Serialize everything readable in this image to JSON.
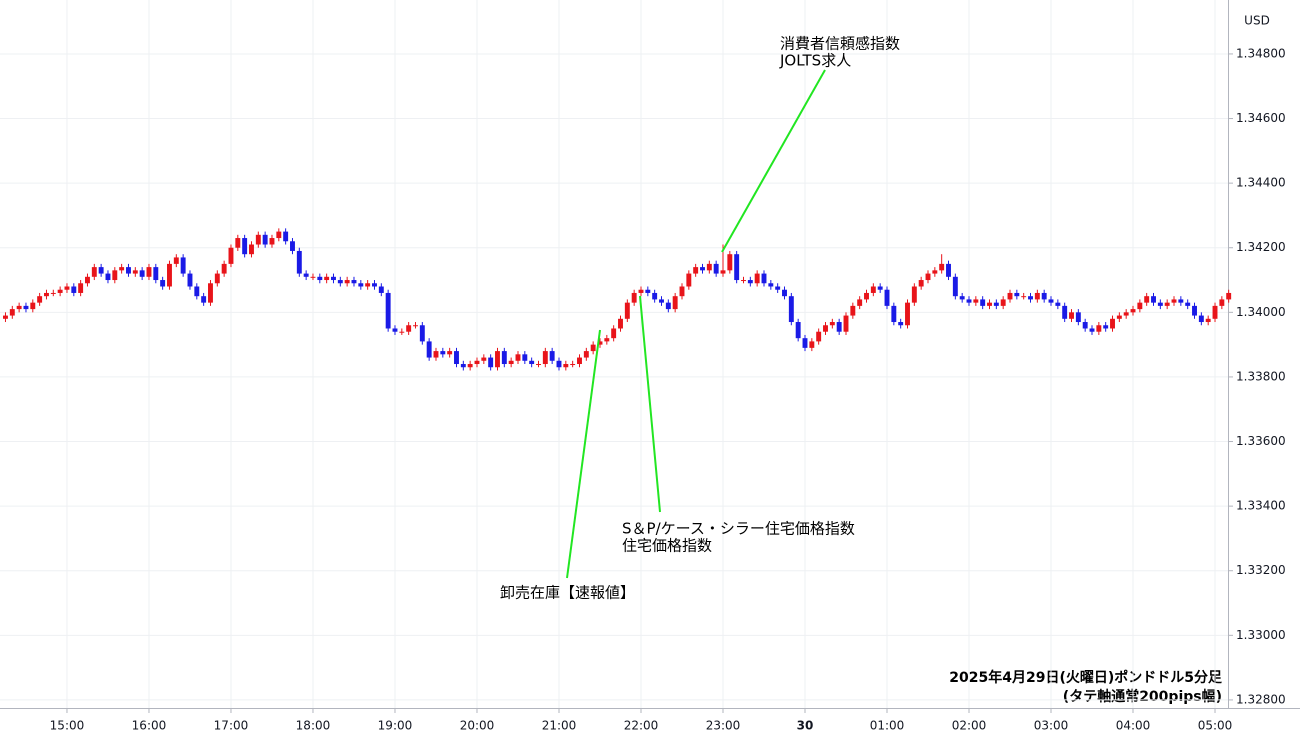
{
  "chart_data": {
    "type": "candlestick",
    "currency": "USD",
    "caption": [
      "2025年4月29日(火曜日)ポンドドル5分足",
      "(タテ軸通常200pips幅)"
    ],
    "annotations": [
      {
        "lines": [
          "消費者信頼感指数",
          "JOLTS求人"
        ]
      },
      {
        "lines": [
          "S＆P/ケース・シラー住宅価格指数",
          "住宅価格指数"
        ]
      },
      {
        "lines": [
          "卸売在庫【速報値】"
        ]
      }
    ],
    "up_color": "#e8141a",
    "down_color": "#1a1ae6",
    "annotation_color": "#22e622",
    "grid": true,
    "ylim": [
      1.32775,
      1.34967
    ],
    "yticks": [
      {
        "value": 1.348,
        "label": "1.34800"
      },
      {
        "value": 1.346,
        "label": "1.34600"
      },
      {
        "value": 1.344,
        "label": "1.34400"
      },
      {
        "value": 1.342,
        "label": "1.34200"
      },
      {
        "value": 1.34,
        "label": "1.34000"
      },
      {
        "value": 1.338,
        "label": "1.33800"
      },
      {
        "value": 1.336,
        "label": "1.33600"
      },
      {
        "value": 1.334,
        "label": "1.33400"
      },
      {
        "value": 1.332,
        "label": "1.33200"
      },
      {
        "value": 1.33,
        "label": "1.33000"
      },
      {
        "value": 1.328,
        "label": "1.32800"
      }
    ],
    "xlim": [
      -0.8,
      178.9
    ],
    "xticks": [
      {
        "value": 9,
        "label": "15:00"
      },
      {
        "value": 21,
        "label": "16:00"
      },
      {
        "value": 33,
        "label": "17:00"
      },
      {
        "value": 45,
        "label": "18:00"
      },
      {
        "value": 57,
        "label": "19:00"
      },
      {
        "value": 69,
        "label": "20:00"
      },
      {
        "value": 81,
        "label": "21:00"
      },
      {
        "value": 93,
        "label": "22:00"
      },
      {
        "value": 105,
        "label": "23:00"
      },
      {
        "value": 117,
        "label": "30"
      },
      {
        "value": 129,
        "label": "01:00"
      },
      {
        "value": 141,
        "label": "02:00"
      },
      {
        "value": 153,
        "label": "03:00"
      },
      {
        "value": 165,
        "label": "04:00"
      },
      {
        "value": 177,
        "label": "05:00"
      }
    ],
    "open": [
      1.3398,
      1.3399,
      1.3401,
      1.3402,
      1.3401,
      1.3403,
      1.3405,
      1.3406,
      1.3406,
      1.3407,
      1.3408,
      1.3406,
      1.3409,
      1.3411,
      1.3414,
      1.3412,
      1.341,
      1.3413,
      1.3414,
      1.3412,
      1.3413,
      1.3411,
      1.3414,
      1.341,
      1.3408,
      1.3415,
      1.3417,
      1.3412,
      1.3408,
      1.3405,
      1.3403,
      1.3409,
      1.3412,
      1.3415,
      1.342,
      1.3423,
      1.3418,
      1.3421,
      1.3424,
      1.3421,
      1.3423,
      1.3425,
      1.3422,
      1.3419,
      1.3412,
      1.3411,
      1.3411,
      1.341,
      1.3411,
      1.341,
      1.3409,
      1.341,
      1.3409,
      1.3408,
      1.3409,
      1.3408,
      1.3406,
      1.3395,
      1.3394,
      1.3394,
      1.3396,
      1.3396,
      1.3391,
      1.3386,
      1.3388,
      1.3387,
      1.3388,
      1.3384,
      1.3383,
      1.3384,
      1.3385,
      1.3386,
      1.3383,
      1.3388,
      1.3384,
      1.3385,
      1.3387,
      1.3385,
      1.3384,
      1.3384,
      1.3388,
      1.3385,
      1.3383,
      1.3384,
      1.3384,
      1.3386,
      1.3388,
      1.339,
      1.3391,
      1.3392,
      1.3395,
      1.3398,
      1.3403,
      1.3406,
      1.3407,
      1.3406,
      1.3404,
      1.3403,
      1.3401,
      1.3405,
      1.3408,
      1.3412,
      1.3414,
      1.3413,
      1.3415,
      1.3412,
      1.3413,
      1.3418,
      1.341,
      1.341,
      1.3409,
      1.3412,
      1.3409,
      1.3408,
      1.3407,
      1.3405,
      1.3397,
      1.3392,
      1.3389,
      1.3391,
      1.3394,
      1.3396,
      1.3397,
      1.3394,
      1.3399,
      1.3402,
      1.3404,
      1.3406,
      1.3408,
      1.3407,
      1.3402,
      1.3397,
      1.3396,
      1.3403,
      1.3408,
      1.341,
      1.3412,
      1.3413,
      1.3415,
      1.3411,
      1.3405,
      1.3404,
      1.3403,
      1.3404,
      1.3402,
      1.3403,
      1.3402,
      1.3404,
      1.3406,
      1.3405,
      1.3405,
      1.3404,
      1.3406,
      1.3404,
      1.3403,
      1.3402,
      1.3398,
      1.34,
      1.3397,
      1.3395,
      1.3394,
      1.3396,
      1.3395,
      1.3398,
      1.3399,
      1.34,
      1.3401,
      1.3403,
      1.3405,
      1.3403,
      1.3402,
      1.3403,
      1.3404,
      1.3403,
      1.3402,
      1.3399,
      1.3397,
      1.3398,
      1.3402,
      1.3404
    ],
    "high": [
      1.34,
      1.3402,
      1.3403,
      1.3403,
      1.3404,
      1.3406,
      1.3407,
      1.3407,
      1.3408,
      1.3409,
      1.3409,
      1.341,
      1.3412,
      1.3415,
      1.3415,
      1.3413,
      1.3414,
      1.3415,
      1.3415,
      1.3414,
      1.3414,
      1.3415,
      1.3415,
      1.3411,
      1.3416,
      1.3418,
      1.3418,
      1.3413,
      1.3409,
      1.3406,
      1.341,
      1.3413,
      1.3416,
      1.3421,
      1.3424,
      1.3424,
      1.3422,
      1.3425,
      1.3425,
      1.3424,
      1.3426,
      1.3426,
      1.3423,
      1.342,
      1.3413,
      1.3412,
      1.3412,
      1.3412,
      1.3412,
      1.3411,
      1.3411,
      1.3411,
      1.341,
      1.341,
      1.341,
      1.3409,
      1.3407,
      1.3396,
      1.3395,
      1.3397,
      1.3397,
      1.3397,
      1.3392,
      1.3389,
      1.3389,
      1.3389,
      1.3389,
      1.3385,
      1.3385,
      1.3386,
      1.3387,
      1.3387,
      1.3389,
      1.3389,
      1.3386,
      1.3388,
      1.3388,
      1.3386,
      1.3385,
      1.3389,
      1.3389,
      1.3386,
      1.3385,
      1.3385,
      1.3387,
      1.3389,
      1.3391,
      1.3392,
      1.3393,
      1.3396,
      1.3399,
      1.3404,
      1.3407,
      1.3408,
      1.3408,
      1.3407,
      1.3405,
      1.3404,
      1.3406,
      1.3409,
      1.3413,
      1.3415,
      1.3415,
      1.3416,
      1.3416,
      1.3421,
      1.3419,
      1.3419,
      1.3411,
      1.3411,
      1.3413,
      1.3413,
      1.341,
      1.3409,
      1.3408,
      1.3406,
      1.3398,
      1.3393,
      1.3392,
      1.3395,
      1.3397,
      1.3398,
      1.3398,
      1.34,
      1.3403,
      1.3405,
      1.3407,
      1.3409,
      1.3409,
      1.3408,
      1.3403,
      1.3398,
      1.3404,
      1.3409,
      1.3411,
      1.3413,
      1.3414,
      1.3418,
      1.3416,
      1.3412,
      1.3406,
      1.3405,
      1.3405,
      1.3405,
      1.3404,
      1.3404,
      1.3405,
      1.3407,
      1.3407,
      1.3406,
      1.3406,
      1.3407,
      1.3407,
      1.3405,
      1.3404,
      1.3403,
      1.3401,
      1.3401,
      1.3398,
      1.3396,
      1.3397,
      1.3397,
      1.3399,
      1.34,
      1.3401,
      1.3402,
      1.3404,
      1.3406,
      1.3406,
      1.3404,
      1.3404,
      1.3405,
      1.3405,
      1.3404,
      1.3403,
      1.34,
      1.3399,
      1.3403,
      1.3405,
      1.3407
    ],
    "low": [
      1.3397,
      1.3398,
      1.34,
      1.34,
      1.34,
      1.3402,
      1.3404,
      1.3405,
      1.3405,
      1.3406,
      1.3405,
      1.3405,
      1.3408,
      1.341,
      1.3411,
      1.3409,
      1.3409,
      1.3412,
      1.3411,
      1.3411,
      1.341,
      1.341,
      1.3409,
      1.3407,
      1.3407,
      1.3414,
      1.3411,
      1.3407,
      1.3404,
      1.3402,
      1.3402,
      1.3408,
      1.3411,
      1.3414,
      1.3419,
      1.3417,
      1.3417,
      1.342,
      1.342,
      1.342,
      1.3422,
      1.3421,
      1.3418,
      1.3411,
      1.341,
      1.341,
      1.3409,
      1.3409,
      1.3409,
      1.3408,
      1.3408,
      1.3408,
      1.3407,
      1.3407,
      1.3407,
      1.3405,
      1.3394,
      1.3393,
      1.3393,
      1.3393,
      1.3395,
      1.339,
      1.3385,
      1.3385,
      1.3386,
      1.3386,
      1.3383,
      1.3382,
      1.3382,
      1.3383,
      1.3384,
      1.3382,
      1.3382,
      1.3383,
      1.3383,
      1.3384,
      1.3384,
      1.3383,
      1.3383,
      1.3383,
      1.3384,
      1.3382,
      1.3382,
      1.3383,
      1.3383,
      1.3385,
      1.3387,
      1.3389,
      1.339,
      1.3391,
      1.3394,
      1.3397,
      1.3402,
      1.3405,
      1.3405,
      1.3403,
      1.3402,
      1.34,
      1.34,
      1.3404,
      1.3407,
      1.3411,
      1.3412,
      1.3412,
      1.3411,
      1.3411,
      1.3412,
      1.3409,
      1.3409,
      1.3408,
      1.3408,
      1.3408,
      1.3407,
      1.3406,
      1.3404,
      1.3396,
      1.3391,
      1.3388,
      1.3388,
      1.339,
      1.3393,
      1.3395,
      1.3393,
      1.3393,
      1.3398,
      1.3401,
      1.3403,
      1.3405,
      1.3406,
      1.3401,
      1.3396,
      1.3395,
      1.3395,
      1.3402,
      1.3407,
      1.3409,
      1.3411,
      1.3412,
      1.341,
      1.3404,
      1.3403,
      1.3402,
      1.3402,
      1.3401,
      1.3401,
      1.3401,
      1.3401,
      1.3403,
      1.3404,
      1.3404,
      1.3403,
      1.3403,
      1.3403,
      1.3402,
      1.3401,
      1.3397,
      1.3397,
      1.3396,
      1.3394,
      1.3393,
      1.3393,
      1.3394,
      1.3394,
      1.3397,
      1.3398,
      1.3399,
      1.34,
      1.3402,
      1.3402,
      1.3401,
      1.3401,
      1.3402,
      1.3402,
      1.3401,
      1.3398,
      1.3396,
      1.3396,
      1.3397,
      1.3401,
      1.3403
    ],
    "close": [
      1.3399,
      1.3401,
      1.3402,
      1.3401,
      1.3403,
      1.3405,
      1.3406,
      1.3406,
      1.3407,
      1.3408,
      1.3406,
      1.3409,
      1.3411,
      1.3414,
      1.3412,
      1.341,
      1.3413,
      1.3414,
      1.3412,
      1.3413,
      1.3411,
      1.3414,
      1.341,
      1.3408,
      1.3415,
      1.3417,
      1.3412,
      1.3408,
      1.3405,
      1.3403,
      1.3409,
      1.3412,
      1.3415,
      1.342,
      1.3423,
      1.3418,
      1.3421,
      1.3424,
      1.3421,
      1.3423,
      1.3425,
      1.3422,
      1.3419,
      1.3412,
      1.3411,
      1.3411,
      1.341,
      1.3411,
      1.341,
      1.3409,
      1.341,
      1.3409,
      1.3408,
      1.3409,
      1.3408,
      1.3406,
      1.3395,
      1.3394,
      1.3394,
      1.3396,
      1.3396,
      1.3391,
      1.3386,
      1.3388,
      1.3387,
      1.3388,
      1.3384,
      1.3383,
      1.3384,
      1.3385,
      1.3386,
      1.3383,
      1.3388,
      1.3384,
      1.3385,
      1.3387,
      1.3385,
      1.3384,
      1.3384,
      1.3388,
      1.3385,
      1.3383,
      1.3384,
      1.3384,
      1.3386,
      1.3388,
      1.339,
      1.3391,
      1.3392,
      1.3395,
      1.3398,
      1.3403,
      1.3406,
      1.3407,
      1.3406,
      1.3404,
      1.3403,
      1.3401,
      1.3405,
      1.3408,
      1.3412,
      1.3414,
      1.3413,
      1.3415,
      1.3412,
      1.3413,
      1.3418,
      1.341,
      1.341,
      1.3409,
      1.3412,
      1.3409,
      1.3408,
      1.3407,
      1.3405,
      1.3397,
      1.3392,
      1.3389,
      1.3391,
      1.3394,
      1.3396,
      1.3397,
      1.3394,
      1.3399,
      1.3402,
      1.3404,
      1.3406,
      1.3408,
      1.3407,
      1.3402,
      1.3397,
      1.3396,
      1.3403,
      1.3408,
      1.341,
      1.3412,
      1.3413,
      1.3415,
      1.3411,
      1.3405,
      1.3404,
      1.3403,
      1.3404,
      1.3402,
      1.3403,
      1.3402,
      1.3404,
      1.3406,
      1.3405,
      1.3405,
      1.3404,
      1.3406,
      1.3404,
      1.3403,
      1.3402,
      1.3398,
      1.34,
      1.3397,
      1.3395,
      1.3394,
      1.3396,
      1.3395,
      1.3398,
      1.3399,
      1.34,
      1.3401,
      1.3403,
      1.3405,
      1.3403,
      1.3402,
      1.3403,
      1.3404,
      1.3403,
      1.3402,
      1.3399,
      1.3397,
      1.3398,
      1.3402,
      1.3404,
      1.3406
    ]
  }
}
